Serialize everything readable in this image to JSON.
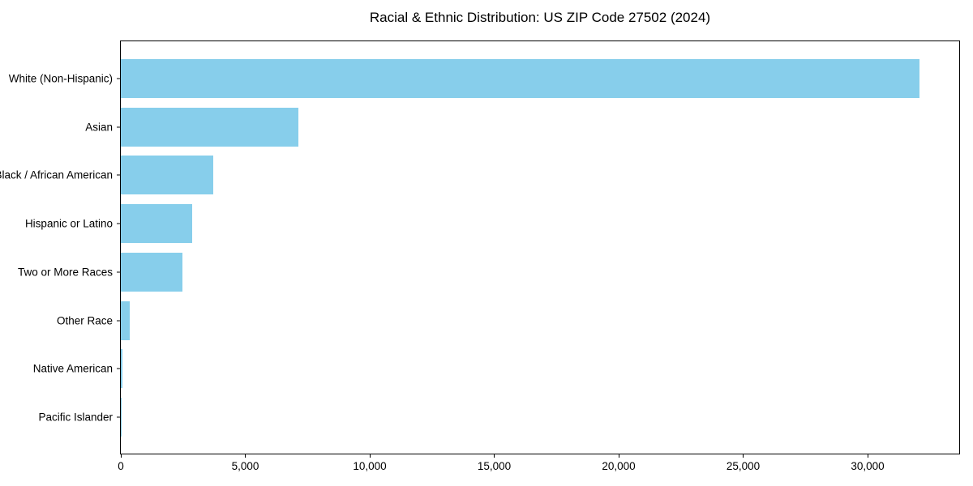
{
  "chart_data": {
    "type": "bar",
    "orientation": "horizontal",
    "title": "Racial & Ethnic Distribution: US ZIP Code 27502 (2024)",
    "categories": [
      "White (Non-Hispanic)",
      "Asian",
      "Black / African American",
      "Hispanic or Latino",
      "Two or More Races",
      "Other Race",
      "Native American",
      "Pacific Islander"
    ],
    "values": [
      32100,
      7120,
      3710,
      2860,
      2470,
      360,
      50,
      15
    ],
    "xlabel": "",
    "ylabel": "",
    "xlim": [
      0,
      33680
    ],
    "xticks": [
      {
        "value": 0,
        "label": "0"
      },
      {
        "value": 5000,
        "label": "5,000"
      },
      {
        "value": 10000,
        "label": "10,000"
      },
      {
        "value": 15000,
        "label": "15,000"
      },
      {
        "value": 20000,
        "label": "20,000"
      },
      {
        "value": 25000,
        "label": "25,000"
      },
      {
        "value": 30000,
        "label": "30,000"
      }
    ],
    "bar_color": "#87CEEB",
    "background_color": "#ffffff",
    "axis_color": "#000000",
    "grid": false,
    "legend": null
  }
}
